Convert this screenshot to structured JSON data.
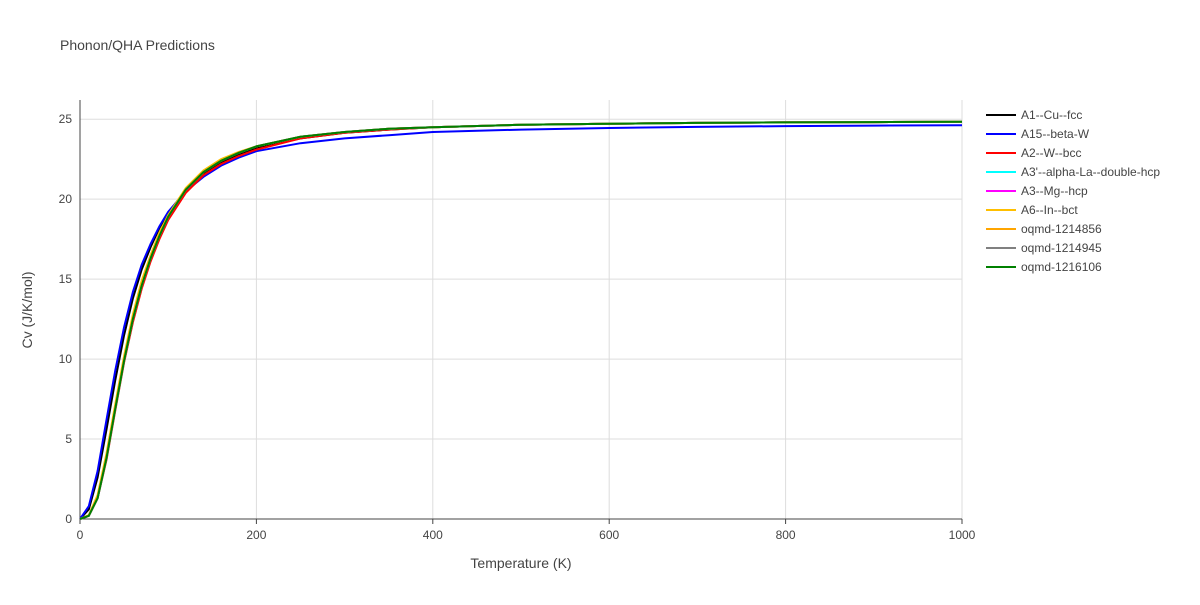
{
  "chart_data": {
    "type": "line",
    "title": "Phonon/QHA Predictions",
    "x_label": "Temperature (K)",
    "y_label": "Cv (J/K/mol)",
    "x": [
      0,
      10,
      20,
      30,
      40,
      50,
      60,
      70,
      80,
      90,
      100,
      120,
      140,
      160,
      180,
      200,
      250,
      300,
      350,
      400,
      500,
      600,
      700,
      800,
      900,
      1000
    ],
    "series": [
      {
        "name": "A1--Cu--fcc",
        "color": "#000000",
        "values": [
          0,
          0.6,
          2.6,
          5.6,
          8.7,
          11.5,
          13.8,
          15.6,
          17.0,
          18.2,
          19.1,
          20.6,
          21.6,
          22.3,
          22.8,
          23.2,
          23.8,
          24.15,
          24.35,
          24.5,
          24.65,
          24.72,
          24.77,
          24.8,
          24.82,
          24.84
        ]
      },
      {
        "name": "A15--beta-W",
        "color": "#0000ff",
        "values": [
          0,
          0.8,
          3.0,
          6.2,
          9.3,
          12.0,
          14.2,
          15.9,
          17.2,
          18.3,
          19.2,
          20.5,
          21.4,
          22.1,
          22.6,
          23.0,
          23.5,
          23.8,
          24.0,
          24.2,
          24.35,
          24.45,
          24.52,
          24.57,
          24.6,
          24.62
        ]
      },
      {
        "name": "A2--W--bcc",
        "color": "#ff0000",
        "values": [
          0,
          0.2,
          1.3,
          3.7,
          6.8,
          9.8,
          12.3,
          14.4,
          16.1,
          17.5,
          18.7,
          20.4,
          21.5,
          22.2,
          22.7,
          23.1,
          23.8,
          24.15,
          24.35,
          24.5,
          24.65,
          24.72,
          24.77,
          24.8,
          24.82,
          24.84
        ]
      },
      {
        "name": "A3'--alpha-La--double-hcp",
        "color": "#00ffff",
        "values": [
          0,
          0.2,
          1.3,
          3.8,
          6.9,
          9.9,
          12.5,
          14.6,
          16.3,
          17.7,
          18.9,
          20.6,
          21.7,
          22.4,
          22.9,
          23.3,
          23.9,
          24.2,
          24.4,
          24.5,
          24.65,
          24.72,
          24.77,
          24.8,
          24.82,
          24.84
        ]
      },
      {
        "name": "A3--Mg--hcp",
        "color": "#ff00ff",
        "values": [
          0,
          0.2,
          1.3,
          3.8,
          6.9,
          9.9,
          12.5,
          14.6,
          16.3,
          17.7,
          18.9,
          20.6,
          21.7,
          22.4,
          22.9,
          23.3,
          23.9,
          24.2,
          24.4,
          24.5,
          24.65,
          24.72,
          24.77,
          24.8,
          24.82,
          24.84
        ]
      },
      {
        "name": "A6--In--bct",
        "color": "#ffbf00",
        "values": [
          0,
          0.25,
          1.5,
          4.1,
          7.2,
          10.2,
          12.8,
          14.9,
          16.5,
          17.9,
          19.0,
          20.7,
          21.8,
          22.5,
          22.95,
          23.3,
          23.9,
          24.2,
          24.4,
          24.5,
          24.65,
          24.72,
          24.77,
          24.8,
          24.82,
          24.84
        ]
      },
      {
        "name": "oqmd-1214856",
        "color": "#ffa500",
        "values": [
          0,
          0.2,
          1.3,
          3.8,
          6.9,
          9.9,
          12.5,
          14.6,
          16.3,
          17.7,
          18.9,
          20.6,
          21.7,
          22.4,
          22.9,
          23.3,
          23.9,
          24.2,
          24.4,
          24.5,
          24.65,
          24.72,
          24.77,
          24.8,
          24.82,
          24.84
        ]
      },
      {
        "name": "oqmd-1214945",
        "color": "#808080",
        "values": [
          0,
          0.2,
          1.3,
          3.8,
          6.9,
          9.9,
          12.5,
          14.6,
          16.3,
          17.7,
          18.9,
          20.6,
          21.7,
          22.4,
          22.9,
          23.3,
          23.9,
          24.2,
          24.4,
          24.5,
          24.65,
          24.72,
          24.77,
          24.8,
          24.82,
          24.84
        ]
      },
      {
        "name": "oqmd-1216106",
        "color": "#008000",
        "values": [
          0,
          0.2,
          1.3,
          3.8,
          6.9,
          9.9,
          12.5,
          14.6,
          16.3,
          17.7,
          18.9,
          20.6,
          21.7,
          22.4,
          22.9,
          23.3,
          23.9,
          24.2,
          24.4,
          24.5,
          24.65,
          24.72,
          24.77,
          24.8,
          24.82,
          24.84
        ]
      }
    ],
    "xlim": [
      0,
      1000
    ],
    "xticks": [
      0,
      200,
      400,
      600,
      800,
      1000
    ],
    "ylim": [
      0,
      26.2
    ],
    "yticks": [
      0,
      5,
      10,
      15,
      20,
      25
    ],
    "grid": true,
    "legend": "right"
  }
}
